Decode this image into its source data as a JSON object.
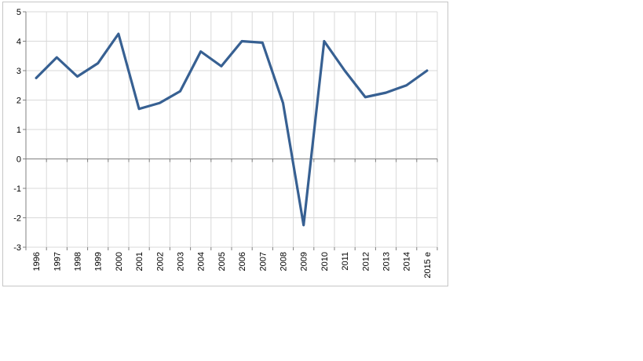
{
  "page": {
    "background": "#ffffff"
  },
  "chart_data": {
    "type": "line",
    "title": "",
    "xlabel": "",
    "ylabel": "",
    "categories": [
      "1996",
      "1997",
      "1998",
      "1999",
      "2000",
      "2001",
      "2002",
      "2003",
      "2004",
      "2005",
      "2006",
      "2007",
      "2008",
      "2009",
      "2010",
      "2011",
      "2012",
      "2013",
      "2014",
      "2015 e"
    ],
    "series": [
      {
        "name": "",
        "values": [
          2.75,
          3.45,
          2.8,
          3.25,
          4.25,
          1.7,
          1.9,
          2.3,
          3.65,
          3.15,
          4.0,
          3.95,
          1.9,
          -2.25,
          4.0,
          3.0,
          2.1,
          2.25,
          2.5,
          3.0
        ]
      }
    ],
    "ylim": [
      -3,
      5
    ],
    "yticks": [
      5,
      4,
      3,
      2,
      1,
      0,
      -1,
      -2,
      -3
    ],
    "grid": true,
    "legend": false,
    "x_label_rotation": -90,
    "colors": {
      "line": "#376092",
      "grid": "#d9d9d9",
      "axis": "#808080",
      "labels": "#000000",
      "frame_border": "#c6c6c6",
      "plot_background": "#ffffff"
    }
  }
}
